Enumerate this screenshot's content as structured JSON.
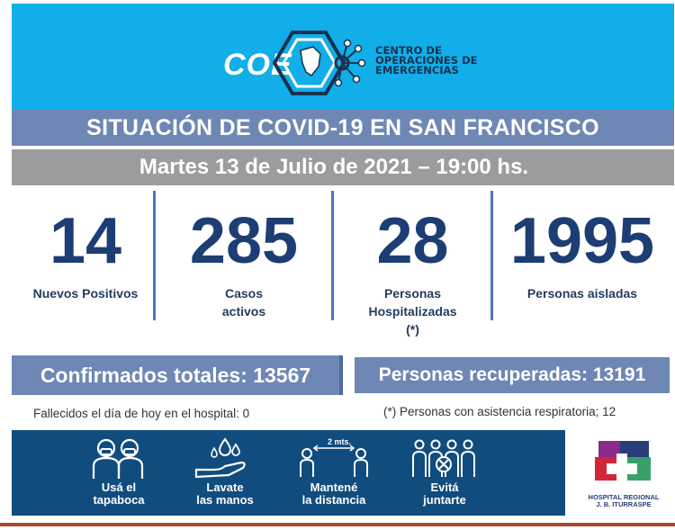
{
  "header": {
    "logo_word": "COE",
    "org_name_lines": [
      "CENTRO DE",
      "OPERACIONES DE",
      "EMERGENCIAS"
    ]
  },
  "title": "SITUACIÓN DE COVID-19 EN SAN FRANCISCO",
  "date_line": "Martes 13 de Julio de 2021 – 19:00 hs.",
  "stats": [
    {
      "value": "14",
      "label_lines": [
        "Nuevos Positivos"
      ]
    },
    {
      "value": "285",
      "label_lines": [
        "Casos",
        "activos"
      ]
    },
    {
      "value": "28",
      "label_lines": [
        "Personas",
        "Hospitalizadas",
        "(*)"
      ]
    },
    {
      "value": "1995",
      "label_lines": [
        "Personas aisladas"
      ]
    }
  ],
  "totals": {
    "confirmed": "Confirmados totales: 13567",
    "recovered": "Personas recuperadas: 13191"
  },
  "notes": {
    "deceased": "Fallecidos el día de hoy en el hospital: 0",
    "respiratory": "(*) Personas con asistencia respiratoria; 12"
  },
  "prevention": [
    {
      "icon": "mask-people-icon",
      "caption_lines": [
        "Usá el",
        "tapaboca"
      ]
    },
    {
      "icon": "wash-hands-icon",
      "caption_lines": [
        "Lavate",
        "las manos"
      ]
    },
    {
      "icon": "distance-icon",
      "caption_lines": [
        "Mantené",
        "la distancia"
      ],
      "distance_label": "2 mts."
    },
    {
      "icon": "no-gathering-icon",
      "caption_lines": [
        "Evitá",
        "juntarte"
      ]
    }
  ],
  "hospital": {
    "name_lines": [
      "HOSPITAL REGIONAL",
      "J. B. ITURRASPE"
    ]
  },
  "colors": {
    "header_blue": "#11aee9",
    "title_bar": "#6f87b5",
    "date_bar": "#9c9c9c",
    "number_navy": "#1d3e74",
    "banner_navy": "#114c7e",
    "footer_rust": "#b0482f"
  }
}
